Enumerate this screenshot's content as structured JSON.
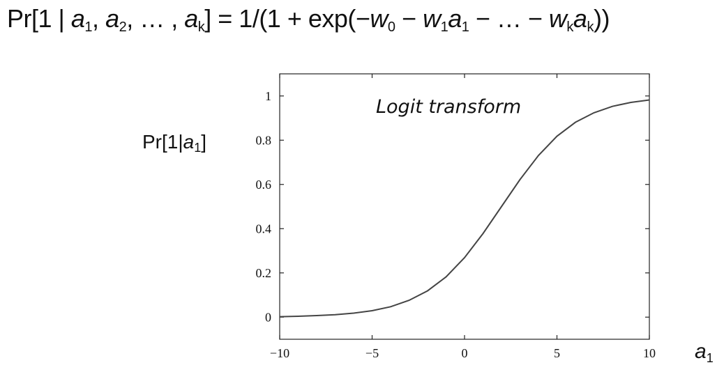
{
  "formula": {
    "pr": "Pr[1 | ",
    "a": "a",
    "sub1": "1",
    "comma1": ", ",
    "sub2": "2",
    "mid": ", … , ",
    "subk": "k",
    "eq": "] = 1/(1 + exp(−",
    "w": "w",
    "sub0": "0",
    "minus1": " − ",
    "minus2": " − … − ",
    "close": "))"
  },
  "ylabel": {
    "prefix": "Pr[1|",
    "var": "a",
    "sub": "1",
    "suffix": "]"
  },
  "xlabel": {
    "var": "a",
    "sub": "1"
  },
  "chart_data": {
    "type": "line",
    "annotation": "Logit transform",
    "xlim": [
      -10,
      10
    ],
    "ylim": [
      -0.1,
      1.1
    ],
    "xticks": [
      -10,
      -5,
      0,
      5,
      10
    ],
    "xtick_labels": [
      "−10",
      "−5",
      "0",
      "5",
      "10"
    ],
    "yticks": [
      0,
      0.2,
      0.4,
      0.6,
      0.8,
      1
    ],
    "ytick_labels": [
      "0",
      "0.2",
      "0.4",
      "0.6",
      "0.8",
      "1"
    ],
    "grid": false,
    "series": [
      {
        "x": [
          -10,
          -9,
          -8,
          -7,
          -6,
          -5,
          -4,
          -3,
          -2,
          -1,
          0,
          1,
          2,
          3,
          4,
          5,
          6,
          7,
          8,
          9,
          10
        ],
        "y": [
          0.002,
          0.004,
          0.007,
          0.011,
          0.018,
          0.029,
          0.047,
          0.076,
          0.119,
          0.182,
          0.269,
          0.378,
          0.5,
          0.622,
          0.731,
          0.818,
          0.881,
          0.924,
          0.953,
          0.971,
          0.982
        ]
      }
    ]
  }
}
